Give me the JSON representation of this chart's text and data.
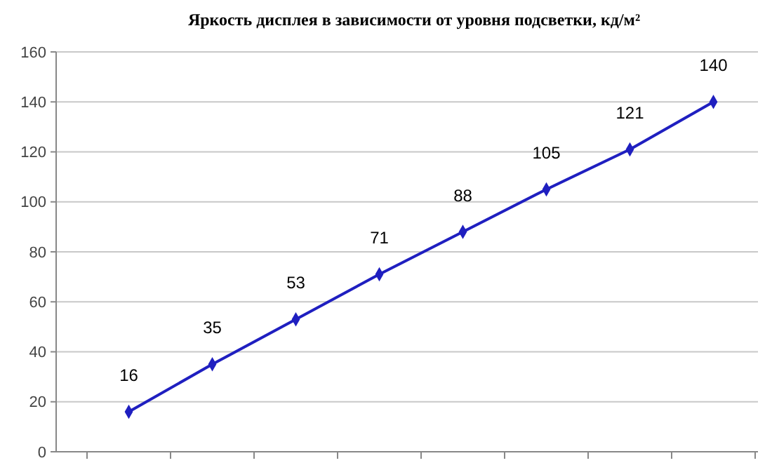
{
  "chart_data": {
    "type": "line",
    "title": "Яркость дисплея в зависимости от уровня подсветки, кд/м²",
    "categories": [
      null,
      null,
      null,
      null,
      null,
      null,
      null,
      null
    ],
    "series": [
      {
        "color": "#1f1fc0",
        "values": [
          16,
          35,
          53,
          71,
          88,
          105,
          121,
          140
        ]
      }
    ],
    "ylim": [
      0,
      160
    ],
    "yticks": [
      0,
      20,
      40,
      60,
      80,
      100,
      120,
      140,
      160
    ],
    "grid": "y",
    "marker": "diamond",
    "data_labels": true
  }
}
